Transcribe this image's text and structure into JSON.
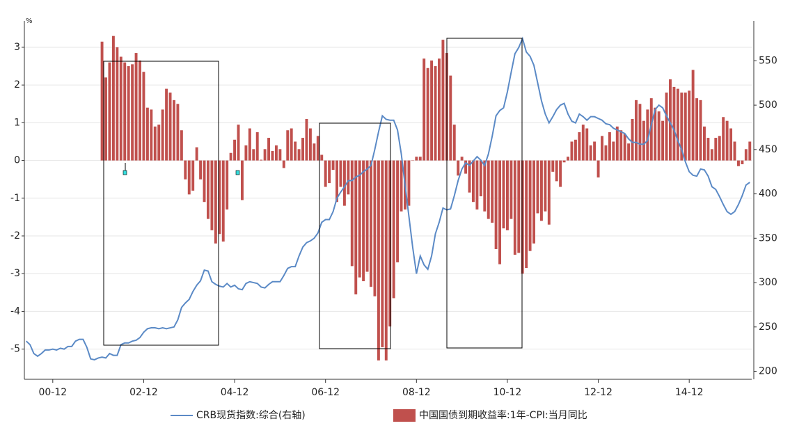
{
  "chart_data": {
    "type": "bar-line",
    "unit": "%",
    "categories": [
      null,
      null,
      null,
      null,
      null,
      null,
      null,
      "00-12",
      null,
      null,
      null,
      null,
      null,
      null,
      null,
      null,
      null,
      null,
      null,
      null,
      null,
      null,
      null,
      null,
      null,
      null,
      null,
      null,
      null,
      null,
      null,
      "02-12",
      null,
      null,
      null,
      null,
      null,
      null,
      null,
      null,
      null,
      null,
      null,
      null,
      null,
      null,
      null,
      null,
      null,
      null,
      null,
      null,
      null,
      null,
      null,
      "04-12",
      null,
      null,
      null,
      null,
      null,
      null,
      null,
      null,
      null,
      null,
      null,
      null,
      null,
      null,
      null,
      null,
      null,
      null,
      null,
      null,
      null,
      null,
      null,
      "06-12",
      null,
      null,
      null,
      null,
      null,
      null,
      null,
      null,
      null,
      null,
      null,
      null,
      null,
      null,
      null,
      null,
      null,
      null,
      null,
      null,
      null,
      null,
      null,
      "08-12",
      null,
      null,
      null,
      null,
      null,
      null,
      null,
      null,
      null,
      null,
      null,
      null,
      null,
      null,
      null,
      null,
      null,
      null,
      null,
      null,
      null,
      null,
      null,
      "10-12",
      null,
      null,
      null,
      null,
      null,
      null,
      null,
      null,
      null,
      null,
      null,
      null,
      null,
      null,
      null,
      null,
      null,
      null,
      null,
      null,
      null,
      null,
      null,
      "12-12",
      null,
      null,
      null,
      null,
      null,
      null,
      null,
      null,
      null,
      null,
      null,
      null,
      null,
      null,
      null,
      null,
      null,
      null,
      null,
      null,
      null,
      null,
      null,
      "14-12",
      null,
      null,
      null,
      null,
      null,
      null,
      null,
      null,
      null,
      null,
      null,
      null,
      null,
      null,
      null,
      null
    ],
    "series": [
      {
        "name": "CRB现货指数:综合(右轴)",
        "kind": "line",
        "axis": "y2",
        "color": "#5b8ac6",
        "values": [
          234,
          230,
          220,
          217,
          220,
          224,
          224,
          225,
          224,
          226,
          225,
          228,
          228,
          234,
          236,
          236,
          227,
          214,
          213,
          215,
          216,
          215,
          220,
          218,
          218,
          230,
          232,
          232,
          234,
          235,
          238,
          244,
          248,
          249,
          249,
          248,
          249,
          248,
          249,
          250,
          258,
          272,
          277,
          281,
          290,
          297,
          302,
          314,
          313,
          301,
          298,
          296,
          295,
          299,
          295,
          297,
          293,
          292,
          299,
          301,
          300,
          299,
          295,
          294,
          298,
          301,
          301,
          301,
          308,
          316,
          318,
          318,
          330,
          340,
          345,
          347,
          350,
          356,
          368,
          371,
          371,
          380,
          395,
          402,
          408,
          415,
          415,
          419,
          421,
          425,
          428,
          432,
          450,
          470,
          488,
          484,
          483,
          483,
          472,
          445,
          410,
          375,
          340,
          310,
          330,
          320,
          315,
          330,
          355,
          368,
          384,
          382,
          383,
          398,
          415,
          428,
          435,
          432,
          437,
          442,
          438,
          432,
          445,
          465,
          488,
          494,
          497,
          515,
          537,
          558,
          565,
          575,
          560,
          555,
          545,
          525,
          505,
          490,
          480,
          487,
          495,
          500,
          502,
          490,
          482,
          480,
          490,
          487,
          483,
          487,
          487,
          485,
          483,
          479,
          478,
          474,
          472,
          470,
          468,
          462,
          458,
          458,
          456,
          456,
          460,
          478,
          495,
          500,
          497,
          488,
          480,
          472,
          460,
          450,
          436,
          425,
          421,
          420,
          428,
          427,
          420,
          408,
          405,
          397,
          388,
          380,
          377,
          380,
          388,
          398,
          410,
          413
        ]
      },
      {
        "name": "中国国债到期收益率:1年-CPI:当月同比",
        "kind": "bar",
        "axis": "y",
        "color": "#c0504d",
        "values": [
          null,
          null,
          null,
          null,
          null,
          null,
          null,
          null,
          null,
          null,
          null,
          null,
          null,
          null,
          null,
          null,
          null,
          null,
          null,
          null,
          3.15,
          2.2,
          2.6,
          3.3,
          3.0,
          2.75,
          2.6,
          2.5,
          2.55,
          2.85,
          2.65,
          2.35,
          1.4,
          1.35,
          0.9,
          0.95,
          1.35,
          1.9,
          1.8,
          1.6,
          1.5,
          0.8,
          -0.5,
          -0.9,
          -0.8,
          0.35,
          -0.5,
          -1.1,
          -1.55,
          -1.85,
          -2.2,
          -1.95,
          -2.15,
          -1.3,
          0.2,
          0.55,
          0.95,
          -1.05,
          0.4,
          0.85,
          0.3,
          0.75,
          0.02,
          0.3,
          0.6,
          0.25,
          0.4,
          0.3,
          -0.2,
          0.8,
          0.85,
          0.5,
          0.3,
          0.6,
          1.1,
          0.85,
          0.45,
          0.65,
          0.15,
          -0.7,
          -0.6,
          -0.25,
          -1.1,
          -0.7,
          -1.2,
          -0.9,
          -2.8,
          -3.55,
          -3.1,
          -3.2,
          -2.95,
          -3.35,
          -3.6,
          -5.3,
          -4.95,
          -5.3,
          -4.4,
          -3.65,
          -2.7,
          -1.35,
          -1.3,
          -1.2,
          0.0,
          0.1,
          0.1,
          2.7,
          2.45,
          2.65,
          2.5,
          2.7,
          3.2,
          2.85,
          2.25,
          0.95,
          -0.4,
          0.1,
          -0.35,
          -0.85,
          -1.1,
          -1.3,
          -0.95,
          -1.35,
          -1.55,
          -1.65,
          -2.35,
          -2.75,
          -1.8,
          -1.85,
          -1.55,
          -2.5,
          -2.45,
          -3.0,
          -2.85,
          -2.4,
          -2.2,
          -1.4,
          -1.6,
          -1.35,
          -1.7,
          -0.3,
          -0.55,
          -0.7,
          -0.05,
          0.1,
          0.5,
          0.55,
          0.75,
          0.95,
          0.85,
          0.4,
          0.5,
          -0.45,
          0.65,
          0.4,
          0.75,
          0.5,
          0.9,
          0.8,
          0.7,
          0.45,
          1.1,
          1.6,
          1.5,
          1.05,
          1.35,
          1.65,
          1.4,
          1.3,
          1.05,
          1.8,
          2.15,
          1.95,
          1.9,
          1.8,
          1.8,
          1.85,
          2.4,
          1.65,
          1.6,
          0.9,
          0.6,
          0.3,
          0.6,
          0.65,
          1.15,
          1.05,
          0.85,
          0.5,
          -0.15,
          -0.1,
          0.3,
          0.5
        ]
      }
    ],
    "ylim": [
      -5.8,
      3.7
    ],
    "yticks": [
      -5,
      -4,
      -3,
      -2,
      -1,
      0,
      1,
      2,
      3
    ],
    "y2lim": [
      191,
      595
    ],
    "y2ticks": [
      200,
      250,
      300,
      350,
      400,
      450,
      500,
      550
    ],
    "grid": true
  }
}
